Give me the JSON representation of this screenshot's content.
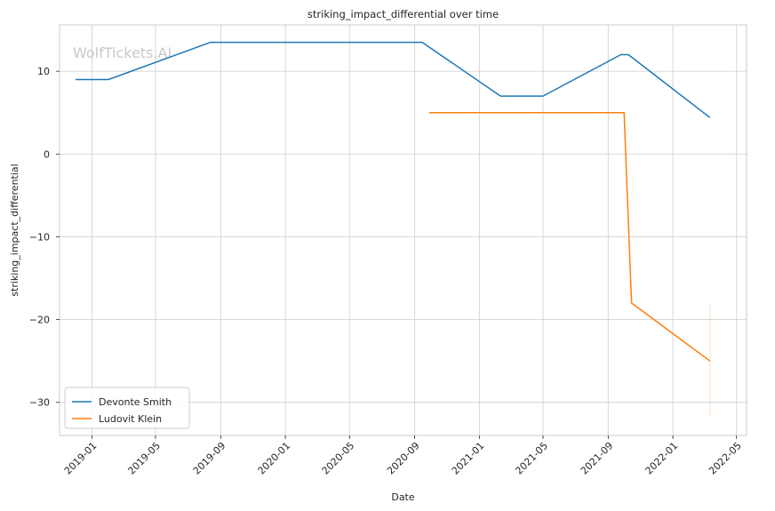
{
  "watermark": "WolfTickets.AI",
  "chart_data": {
    "type": "line",
    "title": "striking_impact_differential over time",
    "xlabel": "Date",
    "ylabel": "striking_impact_differential",
    "xlim": [
      "2018-11-01",
      "2022-05-20"
    ],
    "ylim": [
      -34,
      15.6
    ],
    "x_ticks": [
      "2019-01",
      "2019-05",
      "2019-09",
      "2020-01",
      "2020-05",
      "2020-09",
      "2021-01",
      "2021-05",
      "2021-09",
      "2022-01",
      "2022-05"
    ],
    "y_ticks": [
      10,
      0,
      -10,
      -20,
      -30
    ],
    "y_tick_labels": [
      "10",
      "0",
      "−10",
      "−20",
      "−30"
    ],
    "grid": true,
    "legend_position": "lower-left",
    "series": [
      {
        "name": "Devonte Smith",
        "color": "#1f77b4",
        "points": [
          {
            "x": "2018-12-01",
            "y": 9
          },
          {
            "x": "2019-02-01",
            "y": 9
          },
          {
            "x": "2019-08-13",
            "y": 13.5
          },
          {
            "x": "2020-09-15",
            "y": 13.5
          },
          {
            "x": "2021-02-10",
            "y": 7
          },
          {
            "x": "2021-05-01",
            "y": 7
          },
          {
            "x": "2021-09-25",
            "y": 12
          },
          {
            "x": "2021-10-09",
            "y": 12
          },
          {
            "x": "2022-03-12",
            "y": 4.4
          }
        ]
      },
      {
        "name": "Ludovit Klein",
        "color": "#ff7f0e",
        "points": [
          {
            "x": "2020-09-28",
            "y": 5
          },
          {
            "x": "2021-10-01",
            "y": 5
          },
          {
            "x": "2021-10-15",
            "y": -18
          },
          {
            "x": "2022-03-12",
            "y": -25
          }
        ],
        "error_bar": {
          "x": "2022-03-12",
          "low": -31.8,
          "high": -18.2
        }
      }
    ]
  }
}
